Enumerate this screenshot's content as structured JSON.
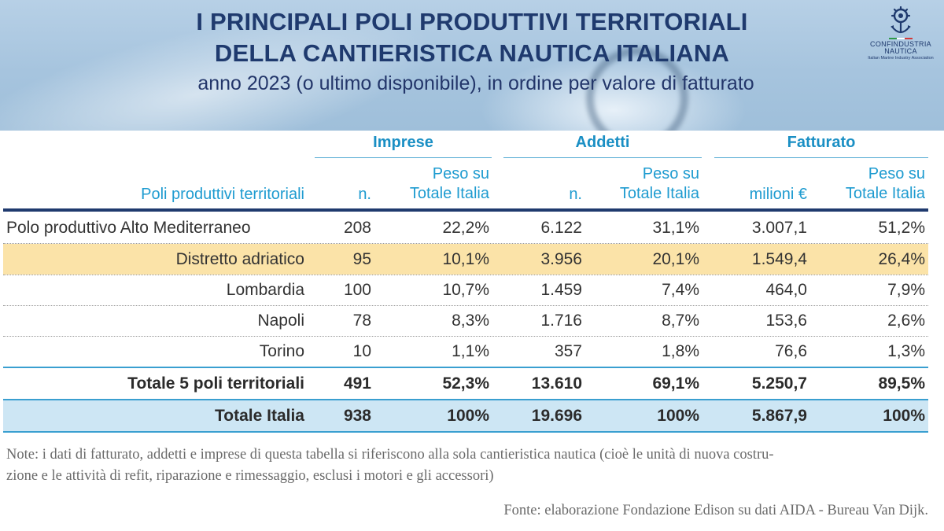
{
  "header": {
    "title_line1": "I PRINCIPALI POLI PRODUTTIVI TERRITORIALI",
    "title_line2": "DELLA CANTIERISTICA NAUTICA ITALIANA",
    "subtitle": "anno 2023 (o ultimo disponibile), in ordine per valore di fatturato"
  },
  "logo": {
    "line1": "CONFINDUSTRIA",
    "line2": "NAUTICA",
    "line3": "Italian Marine Industry Association",
    "icon": "anchor-helm-icon"
  },
  "table": {
    "groups": {
      "imprese": "Imprese",
      "addetti": "Addetti",
      "fatturato": "Fatturato"
    },
    "headers": {
      "poli": "Poli produttivi territoriali",
      "imprese_n": "n.",
      "imprese_peso_1": "Peso su",
      "imprese_peso_2": "Totale Italia",
      "addetti_n": "n.",
      "addetti_peso_1": "Peso su",
      "addetti_peso_2": "Totale Italia",
      "fatt_val": "milioni €",
      "fatt_peso_1": "Peso su",
      "fatt_peso_2": "Totale Italia"
    },
    "rows": [
      {
        "name": "Polo produttivo Alto Mediterraneo",
        "imprese_n": "208",
        "imprese_peso": "22,2%",
        "addetti_n": "6.122",
        "addetti_peso": "31,1%",
        "fatturato": "3.007,1",
        "fatturato_peso": "51,2%"
      },
      {
        "name": "Distretto adriatico",
        "imprese_n": "95",
        "imprese_peso": "10,1%",
        "addetti_n": "3.956",
        "addetti_peso": "20,1%",
        "fatturato": "1.549,4",
        "fatturato_peso": "26,4%"
      },
      {
        "name": "Lombardia",
        "imprese_n": "100",
        "imprese_peso": "10,7%",
        "addetti_n": "1.459",
        "addetti_peso": "7,4%",
        "fatturato": "464,0",
        "fatturato_peso": "7,9%"
      },
      {
        "name": "Napoli",
        "imprese_n": "78",
        "imprese_peso": "8,3%",
        "addetti_n": "1.716",
        "addetti_peso": "8,7%",
        "fatturato": "153,6",
        "fatturato_peso": "2,6%"
      },
      {
        "name": "Torino",
        "imprese_n": "10",
        "imprese_peso": "1,1%",
        "addetti_n": "357",
        "addetti_peso": "1,8%",
        "fatturato": "76,6",
        "fatturato_peso": "1,3%"
      }
    ],
    "total_poli": {
      "name": "Totale 5 poli territoriali",
      "imprese_n": "491",
      "imprese_peso": "52,3%",
      "addetti_n": "13.610",
      "addetti_peso": "69,1%",
      "fatturato": "5.250,7",
      "fatturato_peso": "89,5%"
    },
    "total_italia": {
      "name": "Totale Italia",
      "imprese_n": "938",
      "imprese_peso": "100%",
      "addetti_n": "19.696",
      "addetti_peso": "100%",
      "fatturato": "5.867,9",
      "fatturato_peso": "100%"
    },
    "highlight_color": "#fbe3a8",
    "total_color": "#cde6f4",
    "accent_color": "#1e9bd0"
  },
  "note": {
    "line1": "Note: i dati di fatturato, addetti e imprese di questa tabella si riferiscono alla sola cantieristica nautica (cioè le unità di nuova costru-",
    "line2": "zione e le attività di refit, riparazione e rimessaggio, esclusi i motori e gli accessori)"
  },
  "source": "Fonte: elaborazione Fondazione Edison su dati AIDA - Bureau Van Dijk."
}
